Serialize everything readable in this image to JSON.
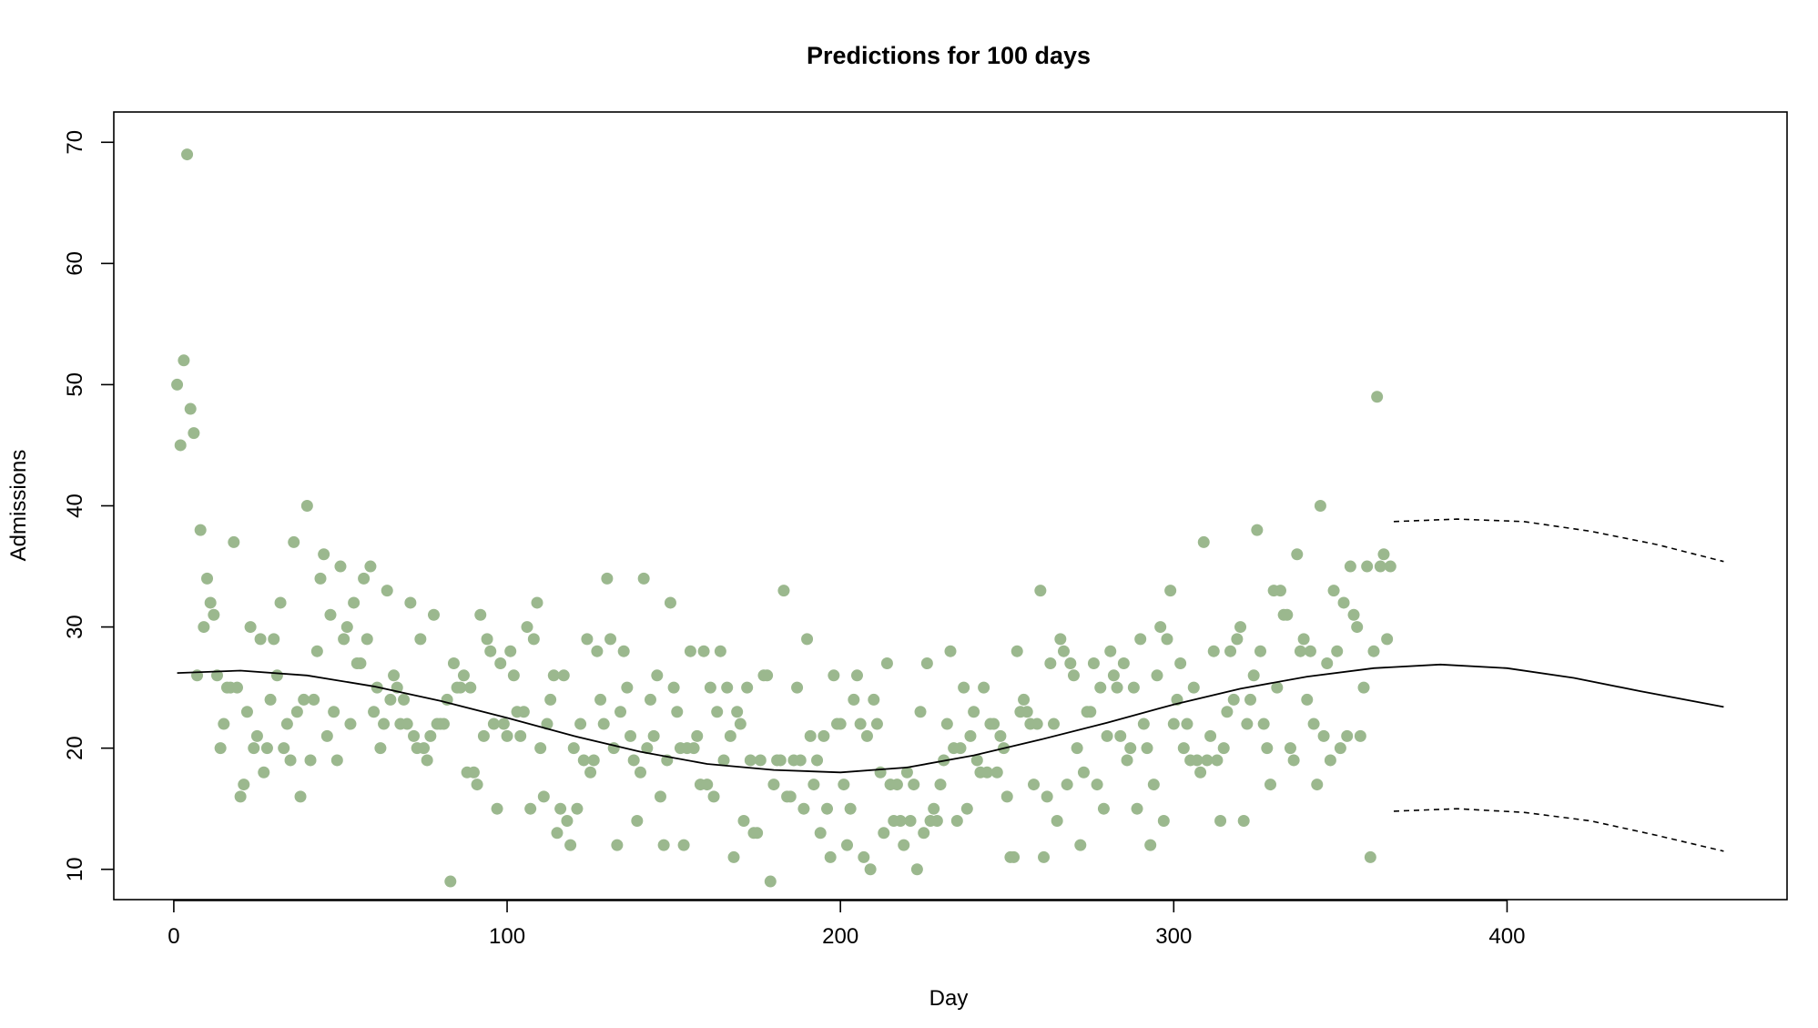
{
  "chart_data": {
    "type": "scatter",
    "title": "Predictions for 100 days",
    "xlabel": "Day",
    "ylabel": "Admissions",
    "xlim": [
      -18,
      484
    ],
    "ylim": [
      7.5,
      72.5
    ],
    "xticks": [
      0,
      100,
      200,
      300,
      400
    ],
    "yticks": [
      10,
      20,
      30,
      40,
      50,
      60,
      70
    ],
    "grid": false,
    "legend": "none",
    "point_color": "#9bb88e",
    "line_color": "#000000",
    "observed": [
      [
        1,
        50
      ],
      [
        2,
        45
      ],
      [
        3,
        52
      ],
      [
        4,
        69
      ],
      [
        5,
        48
      ],
      [
        6,
        46
      ],
      [
        7,
        26
      ],
      [
        8,
        38
      ],
      [
        9,
        30
      ],
      [
        10,
        34
      ],
      [
        11,
        32
      ],
      [
        12,
        31
      ],
      [
        13,
        26
      ],
      [
        14,
        20
      ],
      [
        15,
        22
      ],
      [
        16,
        25
      ],
      [
        17,
        25
      ],
      [
        18,
        37
      ],
      [
        19,
        25
      ],
      [
        20,
        16
      ],
      [
        21,
        17
      ],
      [
        22,
        23
      ],
      [
        23,
        30
      ],
      [
        24,
        20
      ],
      [
        25,
        21
      ],
      [
        26,
        29
      ],
      [
        27,
        18
      ],
      [
        28,
        20
      ],
      [
        29,
        24
      ],
      [
        30,
        29
      ],
      [
        31,
        26
      ],
      [
        32,
        32
      ],
      [
        33,
        20
      ],
      [
        34,
        22
      ],
      [
        35,
        19
      ],
      [
        36,
        37
      ],
      [
        37,
        23
      ],
      [
        38,
        16
      ],
      [
        39,
        24
      ],
      [
        40,
        40
      ],
      [
        41,
        19
      ],
      [
        42,
        24
      ],
      [
        43,
        28
      ],
      [
        44,
        34
      ],
      [
        45,
        36
      ],
      [
        46,
        21
      ],
      [
        47,
        31
      ],
      [
        48,
        23
      ],
      [
        49,
        19
      ],
      [
        50,
        35
      ],
      [
        51,
        29
      ],
      [
        52,
        30
      ],
      [
        53,
        22
      ],
      [
        54,
        32
      ],
      [
        55,
        27
      ],
      [
        56,
        27
      ],
      [
        57,
        34
      ],
      [
        58,
        29
      ],
      [
        59,
        35
      ],
      [
        60,
        23
      ],
      [
        61,
        25
      ],
      [
        62,
        20
      ],
      [
        63,
        22
      ],
      [
        64,
        33
      ],
      [
        65,
        24
      ],
      [
        66,
        26
      ],
      [
        67,
        25
      ],
      [
        68,
        22
      ],
      [
        69,
        24
      ],
      [
        70,
        22
      ],
      [
        71,
        32
      ],
      [
        72,
        21
      ],
      [
        73,
        20
      ],
      [
        74,
        29
      ],
      [
        75,
        20
      ],
      [
        76,
        19
      ],
      [
        77,
        21
      ],
      [
        78,
        31
      ],
      [
        79,
        22
      ],
      [
        80,
        22
      ],
      [
        81,
        22
      ],
      [
        82,
        24
      ],
      [
        83,
        9
      ],
      [
        84,
        27
      ],
      [
        85,
        25
      ],
      [
        86,
        25
      ],
      [
        87,
        26
      ],
      [
        88,
        18
      ],
      [
        89,
        25
      ],
      [
        90,
        18
      ],
      [
        91,
        17
      ],
      [
        92,
        31
      ],
      [
        93,
        21
      ],
      [
        94,
        29
      ],
      [
        95,
        28
      ],
      [
        96,
        22
      ],
      [
        97,
        15
      ],
      [
        98,
        27
      ],
      [
        99,
        22
      ],
      [
        100,
        21
      ],
      [
        101,
        28
      ],
      [
        102,
        26
      ],
      [
        103,
        23
      ],
      [
        104,
        21
      ],
      [
        105,
        23
      ],
      [
        106,
        30
      ],
      [
        107,
        15
      ],
      [
        108,
        29
      ],
      [
        109,
        32
      ],
      [
        110,
        20
      ],
      [
        111,
        16
      ],
      [
        112,
        22
      ],
      [
        113,
        24
      ],
      [
        114,
        26
      ],
      [
        115,
        13
      ],
      [
        116,
        15
      ],
      [
        117,
        26
      ],
      [
        118,
        14
      ],
      [
        119,
        12
      ],
      [
        120,
        20
      ],
      [
        121,
        15
      ],
      [
        122,
        22
      ],
      [
        123,
        19
      ],
      [
        124,
        29
      ],
      [
        125,
        18
      ],
      [
        126,
        19
      ],
      [
        127,
        28
      ],
      [
        128,
        24
      ],
      [
        129,
        22
      ],
      [
        130,
        34
      ],
      [
        131,
        29
      ],
      [
        132,
        20
      ],
      [
        133,
        12
      ],
      [
        134,
        23
      ],
      [
        135,
        28
      ],
      [
        136,
        25
      ],
      [
        137,
        21
      ],
      [
        138,
        19
      ],
      [
        139,
        14
      ],
      [
        140,
        18
      ],
      [
        141,
        34
      ],
      [
        142,
        20
      ],
      [
        143,
        24
      ],
      [
        144,
        21
      ],
      [
        145,
        26
      ],
      [
        146,
        16
      ],
      [
        147,
        12
      ],
      [
        148,
        19
      ],
      [
        149,
        32
      ],
      [
        150,
        25
      ],
      [
        151,
        23
      ],
      [
        152,
        20
      ],
      [
        153,
        12
      ],
      [
        154,
        20
      ],
      [
        155,
        28
      ],
      [
        156,
        20
      ],
      [
        157,
        21
      ],
      [
        158,
        17
      ],
      [
        159,
        28
      ],
      [
        160,
        17
      ],
      [
        161,
        25
      ],
      [
        162,
        16
      ],
      [
        163,
        23
      ],
      [
        164,
        28
      ],
      [
        165,
        19
      ],
      [
        166,
        25
      ],
      [
        167,
        21
      ],
      [
        168,
        11
      ],
      [
        169,
        23
      ],
      [
        170,
        22
      ],
      [
        171,
        14
      ],
      [
        172,
        25
      ],
      [
        173,
        19
      ],
      [
        174,
        13
      ],
      [
        175,
        13
      ],
      [
        176,
        19
      ],
      [
        177,
        26
      ],
      [
        178,
        26
      ],
      [
        179,
        9
      ],
      [
        180,
        17
      ],
      [
        181,
        19
      ],
      [
        182,
        19
      ],
      [
        183,
        33
      ],
      [
        184,
        16
      ],
      [
        185,
        16
      ],
      [
        186,
        19
      ],
      [
        187,
        25
      ],
      [
        188,
        19
      ],
      [
        189,
        15
      ],
      [
        190,
        29
      ],
      [
        191,
        21
      ],
      [
        192,
        17
      ],
      [
        193,
        19
      ],
      [
        194,
        13
      ],
      [
        195,
        21
      ],
      [
        196,
        15
      ],
      [
        197,
        11
      ],
      [
        198,
        26
      ],
      [
        199,
        22
      ],
      [
        200,
        22
      ],
      [
        201,
        17
      ],
      [
        202,
        12
      ],
      [
        203,
        15
      ],
      [
        204,
        24
      ],
      [
        205,
        26
      ],
      [
        206,
        22
      ],
      [
        207,
        11
      ],
      [
        208,
        21
      ],
      [
        209,
        10
      ],
      [
        210,
        24
      ],
      [
        211,
        22
      ],
      [
        212,
        18
      ],
      [
        213,
        13
      ],
      [
        214,
        27
      ],
      [
        215,
        17
      ],
      [
        216,
        14
      ],
      [
        217,
        17
      ],
      [
        218,
        14
      ],
      [
        219,
        12
      ],
      [
        220,
        18
      ],
      [
        221,
        14
      ],
      [
        222,
        17
      ],
      [
        223,
        10
      ],
      [
        224,
        23
      ],
      [
        225,
        13
      ],
      [
        226,
        27
      ],
      [
        227,
        14
      ],
      [
        228,
        15
      ],
      [
        229,
        14
      ],
      [
        230,
        17
      ],
      [
        231,
        19
      ],
      [
        232,
        22
      ],
      [
        233,
        28
      ],
      [
        234,
        20
      ],
      [
        235,
        14
      ],
      [
        236,
        20
      ],
      [
        237,
        25
      ],
      [
        238,
        15
      ],
      [
        239,
        21
      ],
      [
        240,
        23
      ],
      [
        241,
        19
      ],
      [
        242,
        18
      ],
      [
        243,
        25
      ],
      [
        244,
        18
      ],
      [
        245,
        22
      ],
      [
        246,
        22
      ],
      [
        247,
        18
      ],
      [
        248,
        21
      ],
      [
        249,
        20
      ],
      [
        250,
        16
      ],
      [
        251,
        11
      ],
      [
        252,
        11
      ],
      [
        253,
        28
      ],
      [
        254,
        23
      ],
      [
        255,
        24
      ],
      [
        256,
        23
      ],
      [
        257,
        22
      ],
      [
        258,
        17
      ],
      [
        259,
        22
      ],
      [
        260,
        33
      ],
      [
        261,
        11
      ],
      [
        262,
        16
      ],
      [
        263,
        27
      ],
      [
        264,
        22
      ],
      [
        265,
        14
      ],
      [
        266,
        29
      ],
      [
        267,
        28
      ],
      [
        268,
        17
      ],
      [
        269,
        27
      ],
      [
        270,
        26
      ],
      [
        271,
        20
      ],
      [
        272,
        12
      ],
      [
        273,
        18
      ],
      [
        274,
        23
      ],
      [
        275,
        23
      ],
      [
        276,
        27
      ],
      [
        277,
        17
      ],
      [
        278,
        25
      ],
      [
        279,
        15
      ],
      [
        280,
        21
      ],
      [
        281,
        28
      ],
      [
        282,
        26
      ],
      [
        283,
        25
      ],
      [
        284,
        21
      ],
      [
        285,
        27
      ],
      [
        286,
        19
      ],
      [
        287,
        20
      ],
      [
        288,
        25
      ],
      [
        289,
        15
      ],
      [
        290,
        29
      ],
      [
        291,
        22
      ],
      [
        292,
        20
      ],
      [
        293,
        12
      ],
      [
        294,
        17
      ],
      [
        295,
        26
      ],
      [
        296,
        30
      ],
      [
        297,
        14
      ],
      [
        298,
        29
      ],
      [
        299,
        33
      ],
      [
        300,
        22
      ],
      [
        301,
        24
      ],
      [
        302,
        27
      ],
      [
        303,
        20
      ],
      [
        304,
        22
      ],
      [
        305,
        19
      ],
      [
        306,
        25
      ],
      [
        307,
        19
      ],
      [
        308,
        18
      ],
      [
        309,
        37
      ],
      [
        310,
        19
      ],
      [
        311,
        21
      ],
      [
        312,
        28
      ],
      [
        313,
        19
      ],
      [
        314,
        14
      ],
      [
        315,
        20
      ],
      [
        316,
        23
      ],
      [
        317,
        28
      ],
      [
        318,
        24
      ],
      [
        319,
        29
      ],
      [
        320,
        30
      ],
      [
        321,
        14
      ],
      [
        322,
        22
      ],
      [
        323,
        24
      ],
      [
        324,
        26
      ],
      [
        325,
        38
      ],
      [
        326,
        28
      ],
      [
        327,
        22
      ],
      [
        328,
        20
      ],
      [
        329,
        17
      ],
      [
        330,
        33
      ],
      [
        331,
        25
      ],
      [
        332,
        33
      ],
      [
        333,
        31
      ],
      [
        334,
        31
      ],
      [
        335,
        20
      ],
      [
        336,
        19
      ],
      [
        337,
        36
      ],
      [
        338,
        28
      ],
      [
        339,
        29
      ],
      [
        340,
        24
      ],
      [
        341,
        28
      ],
      [
        342,
        22
      ],
      [
        343,
        17
      ],
      [
        344,
        40
      ],
      [
        345,
        21
      ],
      [
        346,
        27
      ],
      [
        347,
        19
      ],
      [
        348,
        33
      ],
      [
        349,
        28
      ],
      [
        350,
        20
      ],
      [
        351,
        32
      ],
      [
        352,
        21
      ],
      [
        353,
        35
      ],
      [
        354,
        31
      ],
      [
        355,
        30
      ],
      [
        356,
        21
      ],
      [
        357,
        25
      ],
      [
        358,
        35
      ],
      [
        359,
        11
      ],
      [
        360,
        28
      ],
      [
        361,
        49
      ],
      [
        362,
        35
      ],
      [
        363,
        36
      ],
      [
        364,
        29
      ],
      [
        365,
        35
      ]
    ],
    "fitted_line": [
      [
        1,
        26.2
      ],
      [
        20,
        26.4
      ],
      [
        40,
        26.0
      ],
      [
        60,
        25.1
      ],
      [
        80,
        23.9
      ],
      [
        100,
        22.5
      ],
      [
        120,
        21.0
      ],
      [
        140,
        19.7
      ],
      [
        160,
        18.7
      ],
      [
        180,
        18.2
      ],
      [
        200,
        18.0
      ],
      [
        220,
        18.4
      ],
      [
        240,
        19.4
      ],
      [
        260,
        20.7
      ],
      [
        280,
        22.1
      ],
      [
        300,
        23.6
      ],
      [
        320,
        24.9
      ],
      [
        340,
        25.9
      ],
      [
        360,
        26.6
      ],
      [
        380,
        26.9
      ],
      [
        400,
        26.6
      ],
      [
        420,
        25.8
      ],
      [
        440,
        24.7
      ],
      [
        465,
        23.4
      ]
    ],
    "upper_band": [
      [
        366,
        38.7
      ],
      [
        385,
        38.9
      ],
      [
        405,
        38.7
      ],
      [
        425,
        37.9
      ],
      [
        445,
        36.8
      ],
      [
        465,
        35.4
      ]
    ],
    "lower_band": [
      [
        366,
        14.8
      ],
      [
        385,
        15.0
      ],
      [
        405,
        14.7
      ],
      [
        425,
        14.0
      ],
      [
        445,
        12.8
      ],
      [
        465,
        11.5
      ]
    ]
  }
}
